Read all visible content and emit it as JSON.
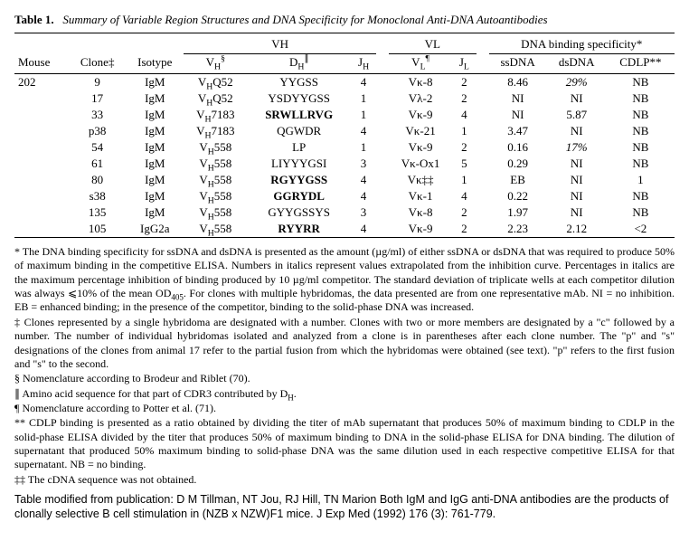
{
  "title": {
    "label": "Table 1.",
    "caption": "Summary of Variable Region Structures and DNA Specificity for Monoclonal Anti-DNA Autoantibodies"
  },
  "group_headers": {
    "vh": "VH",
    "vl": "VL",
    "spec": "DNA binding specificity*"
  },
  "columns": {
    "mouse": "Mouse",
    "clone": "Clone‡",
    "isotype": "Isotype",
    "vh": "V",
    "vh_sup": "§",
    "dh": "D",
    "dh_sup": "∥",
    "jh": "J",
    "vl": "V",
    "vl_sup": "¶",
    "jl": "J",
    "ssdna": "ssDNA",
    "dsdna": "dsDNA",
    "cdlp": "CDLP**"
  },
  "sub": {
    "h": "H",
    "l": "L"
  },
  "mouse": "202",
  "rows": [
    {
      "clone": "9",
      "isotype": "IgM",
      "vh": "V_HQ52",
      "dh": "YYGSS",
      "dh_bold": false,
      "jh": "4",
      "vl": "Vκ-8",
      "jl": "2",
      "ss": "8.46",
      "ss_it": false,
      "ds": "29%",
      "ds_it": true,
      "cdlp": "NB"
    },
    {
      "clone": "17",
      "isotype": "IgM",
      "vh": "V_HQ52",
      "dh": "YSDYYGSS",
      "dh_bold": false,
      "jh": "1",
      "vl": "Vλ-2",
      "jl": "2",
      "ss": "NI",
      "ss_it": false,
      "ds": "NI",
      "ds_it": false,
      "cdlp": "NB"
    },
    {
      "clone": "33",
      "isotype": "IgM",
      "vh": "V_H7183",
      "dh": "SRWLLRVG",
      "dh_bold": true,
      "jh": "1",
      "vl": "Vκ-9",
      "jl": "4",
      "ss": "NI",
      "ss_it": false,
      "ds": "5.87",
      "ds_it": false,
      "cdlp": "NB"
    },
    {
      "clone": "p38",
      "isotype": "IgM",
      "vh": "V_H7183",
      "dh": "QGWDR",
      "dh_bold": false,
      "jh": "4",
      "vl": "Vκ-21",
      "jl": "1",
      "ss": "3.47",
      "ss_it": false,
      "ds": "NI",
      "ds_it": false,
      "cdlp": "NB"
    },
    {
      "clone": "54",
      "isotype": "IgM",
      "vh": "V_H558",
      "dh": "LP",
      "dh_bold": false,
      "jh": "1",
      "vl": "Vκ-9",
      "jl": "2",
      "ss": "0.16",
      "ss_it": false,
      "ds": "17%",
      "ds_it": true,
      "cdlp": "NB"
    },
    {
      "clone": "61",
      "isotype": "IgM",
      "vh": "V_H558",
      "dh": "LIYYYGSI",
      "dh_bold": false,
      "jh": "3",
      "vl": "Vκ-Ox1",
      "jl": "5",
      "ss": "0.29",
      "ss_it": false,
      "ds": "NI",
      "ds_it": false,
      "cdlp": "NB"
    },
    {
      "clone": "80",
      "isotype": "IgM",
      "vh": "V_H558",
      "dh": "RGYYGSS",
      "dh_bold": true,
      "jh": "4",
      "vl": "Vκ‡‡",
      "jl": "1",
      "ss": "EB",
      "ss_it": false,
      "ds": "NI",
      "ds_it": false,
      "cdlp": "1"
    },
    {
      "clone": "s38",
      "isotype": "IgM",
      "vh": "V_H558",
      "dh": "GGRYDL",
      "dh_bold": true,
      "jh": "4",
      "vl": "Vκ-1",
      "jl": "4",
      "ss": "0.22",
      "ss_it": false,
      "ds": "NI",
      "ds_it": false,
      "cdlp": "NB"
    },
    {
      "clone": "135",
      "isotype": "IgM",
      "vh": "V_H558",
      "dh": "GYYGSSYS",
      "dh_bold": false,
      "jh": "3",
      "vl": "Vκ-8",
      "jl": "2",
      "ss": "1.97",
      "ss_it": false,
      "ds": "NI",
      "ds_it": false,
      "cdlp": "NB"
    },
    {
      "clone": "105",
      "isotype": "IgG2a",
      "vh": "V_H558",
      "dh": "RYYRR",
      "dh_bold": true,
      "jh": "4",
      "vl": "Vκ-9",
      "jl": "2",
      "ss": "2.23",
      "ss_it": false,
      "ds": "2.12",
      "ds_it": false,
      "cdlp": "<2"
    }
  ],
  "footnotes": [
    "* The DNA binding specificity for ssDNA and dsDNA is presented as the amount (µg/ml) of either ssDNA or dsDNA that was required to produce 50% of maximum binding in the competitive ELISA. Numbers in italics represent values extrapolated from the inhibition curve. Percentages in italics are the maximum percentage inhibition of binding produced by 10 µg/ml competitor. The standard deviation of triplicate wells at each competitor dilution was always ⩽10% of the mean OD405. For clones with multiple hybridomas, the data presented are from one representative mAb. NI = no inhibition. EB = enhanced binding; in the presence of the competitor, binding to the solid-phase DNA was increased.",
    "‡ Clones represented by a single hybridoma are designated with a number. Clones with two or more members are designated by a \"c\" followed by a number. The number of individual hybridomas isolated and analyzed from a clone is in parentheses after each clone number. The \"p\" and \"s\" designations of the clones from animal 17 refer to the partial fusion from which the hybridomas were obtained (see text). \"p\" refers to the first fusion and \"s\" to the second.",
    "§ Nomenclature according to Brodeur and Riblet (70).",
    "∥ Amino acid sequence for that part of CDR3 contributed by DH.",
    "¶ Nomenclature according to Potter et al. (71).",
    "** CDLP binding is presented as a ratio obtained by dividing the titer of mAb supernatant that produces 50% of maximum binding to CDLP in the solid-phase ELISA divided by the titer that produces 50% of maximum binding to DNA in the solid-phase ELISA for DNA binding. The dilution of supernatant that produced 50% maximum binding to solid-phase DNA was the same dilution used in each respective competitive ELISA for that supernatant. NB = no binding.",
    "‡‡ The cDNA sequence was not obtained."
  ],
  "citation": "Table modified from publication: D M Tillman, NT Jou, RJ Hill, TN Marion Both IgM and IgG anti-DNA antibodies are the products of clonally selective B cell stimulation in (NZB x NZW)F1 mice. J Exp Med (1992) 176 (3): 761-779."
}
